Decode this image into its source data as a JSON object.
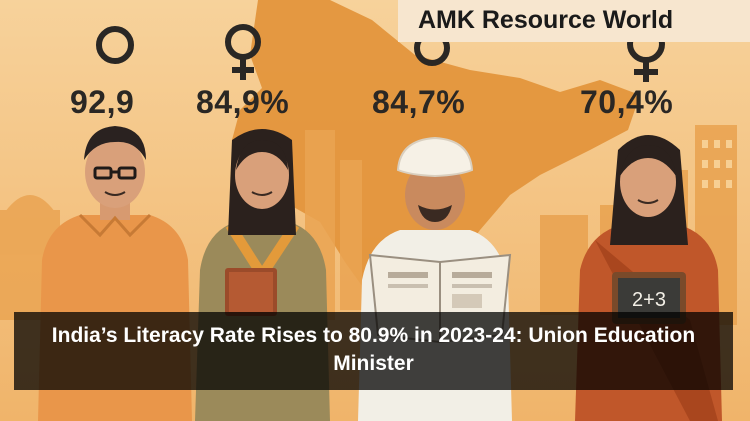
{
  "brand": {
    "name": "AMK Resource World"
  },
  "stats": [
    {
      "value": "92,9",
      "symbol": "male-icon"
    },
    {
      "value": "84,9%",
      "symbol": "female-icon"
    },
    {
      "value": "84,7%",
      "symbol": "male-icon"
    },
    {
      "value": "70,4%",
      "symbol": "female-icon"
    }
  ],
  "headline": "India’s Literacy Rate Rises to 80.9% in 2023-24: Union Education Minister",
  "illustration": {
    "newspaper_text": "",
    "slate_text": "2+3"
  },
  "colors": {
    "background": "#f6c98a",
    "map": "#e3953c",
    "skyline": "#eaa452",
    "text_dark": "#2a2724",
    "banner": "#000000",
    "banner_text": "#ffffff"
  }
}
